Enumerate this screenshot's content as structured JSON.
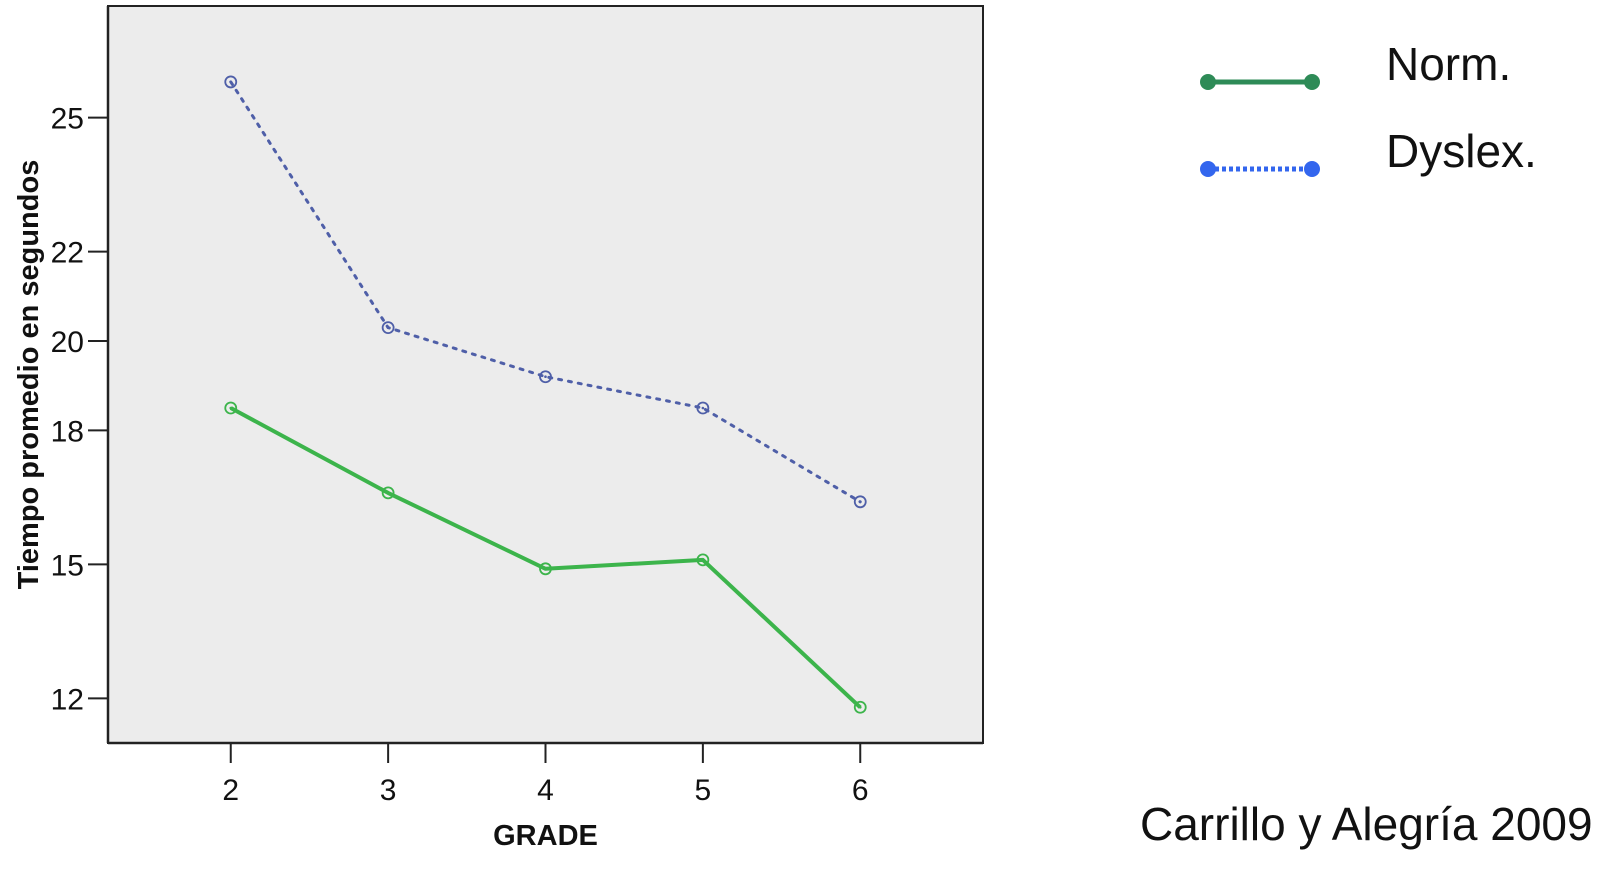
{
  "chart_data": {
    "type": "line",
    "title": "",
    "xlabel": "GRADE",
    "ylabel": "Tiempo promedio en segundos",
    "x": [
      2,
      3,
      4,
      5,
      6
    ],
    "x_tick_labels": [
      "2",
      "3",
      "4",
      "5",
      "6"
    ],
    "y_ticks": [
      12,
      15,
      18,
      20,
      22,
      25
    ],
    "y_tick_labels": [
      "12",
      "15",
      "18",
      "20",
      "22",
      "25"
    ],
    "xlim": [
      1.22,
      6.78
    ],
    "ylim": [
      11.0,
      27.5
    ],
    "grid": false,
    "legend_position": "right",
    "series": [
      {
        "name": "Norm.",
        "values": [
          18.5,
          16.6,
          14.9,
          15.1,
          11.8
        ],
        "color": "#3cb44b",
        "legend_color": "#2e8b57",
        "style": "solid"
      },
      {
        "name": "Dyslex.",
        "values": [
          25.8,
          20.3,
          19.2,
          18.5,
          16.4
        ],
        "color": "#4f5fa8",
        "legend_color": "#3366ee",
        "style": "dotted"
      }
    ]
  },
  "credit": "Carrillo y Alegría 2009",
  "colors": {
    "plot_background": "#ececec",
    "axis": "#222222"
  }
}
